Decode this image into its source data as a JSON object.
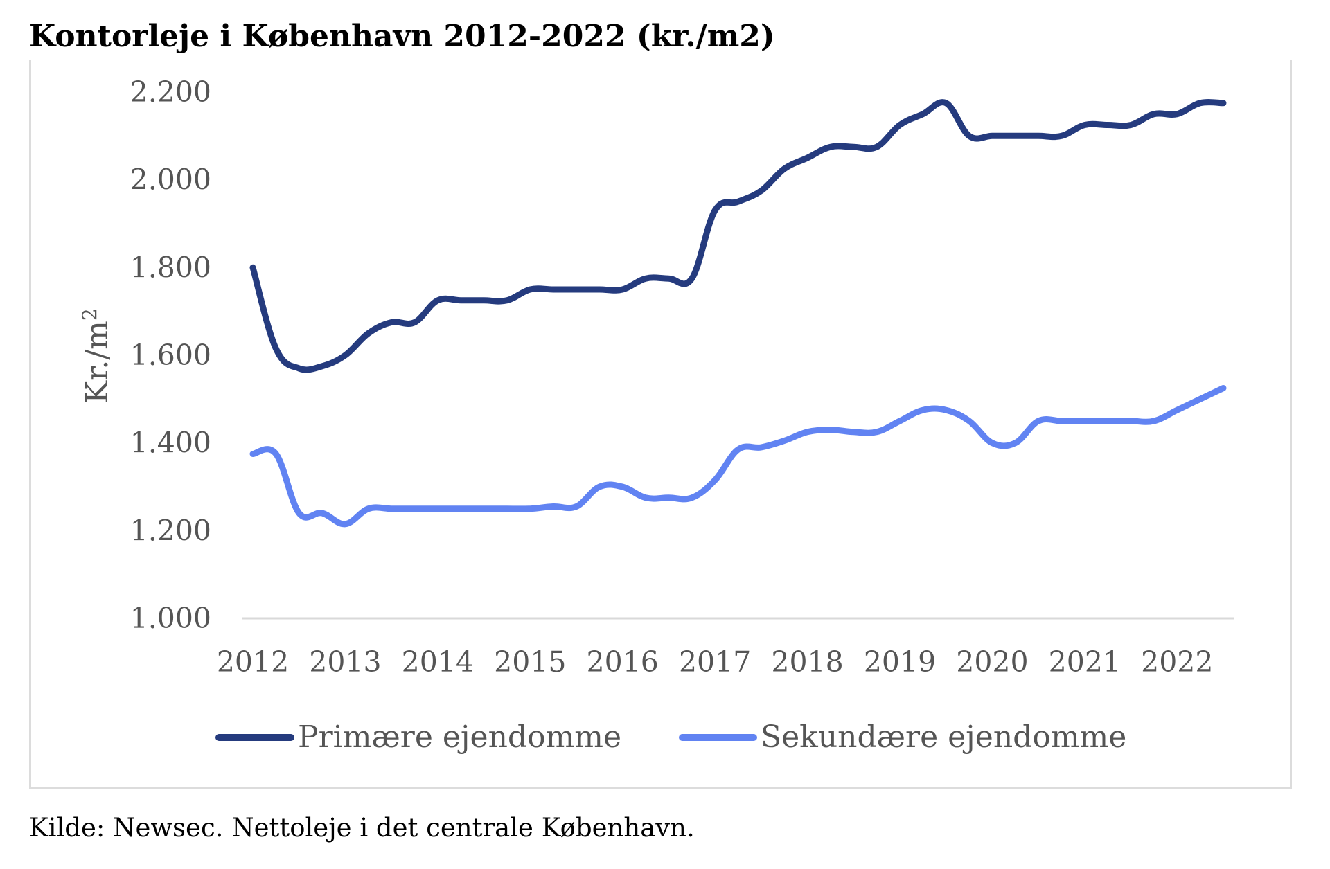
{
  "title": "Kontorleje i København 2012-2022 (kr./m2)",
  "source": "Kilde: Newsec. Nettoleje i det centrale København.",
  "colors": {
    "primary_series": "#253b7e",
    "secondary_series": "#6183f2",
    "gridline": "#d9d9d9",
    "axis_text": "#555555",
    "frame": "#dcdcdc"
  },
  "chart_data": {
    "type": "line",
    "title": "Kontorleje i København 2012-2022 (kr./m2)",
    "xlabel": "",
    "ylabel": "Kr./m",
    "ylabel_superscript": "2",
    "xlim": [
      2012,
      2022.5
    ],
    "ylim": [
      1000,
      2200
    ],
    "yticks": [
      1000,
      1200,
      1400,
      1600,
      1800,
      2000,
      2200
    ],
    "ytick_labels": [
      "1.000",
      "1.200",
      "1.400",
      "1.600",
      "1.800",
      "2.000",
      "2.200"
    ],
    "xticks": [
      2012,
      2013,
      2014,
      2015,
      2016,
      2017,
      2018,
      2019,
      2020,
      2021,
      2022
    ],
    "xtick_labels": [
      "2012",
      "2013",
      "2014",
      "2015",
      "2016",
      "2017",
      "2018",
      "2019",
      "2020",
      "2021",
      "2022"
    ],
    "grid": false,
    "legend_position": "bottom",
    "series": [
      {
        "name": "Primære ejendomme",
        "x": [
          2012.0,
          2012.25,
          2012.5,
          2012.75,
          2013.0,
          2013.25,
          2013.5,
          2013.75,
          2014.0,
          2014.25,
          2014.5,
          2014.75,
          2015.0,
          2015.25,
          2015.5,
          2015.75,
          2016.0,
          2016.25,
          2016.5,
          2016.75,
          2017.0,
          2017.25,
          2017.5,
          2017.75,
          2018.0,
          2018.25,
          2018.5,
          2018.75,
          2019.0,
          2019.25,
          2019.5,
          2019.75,
          2020.0,
          2020.25,
          2020.5,
          2020.75,
          2021.0,
          2021.25,
          2021.5,
          2021.75,
          2022.0,
          2022.25,
          2022.5
        ],
        "values": [
          1800,
          1615,
          1570,
          1575,
          1600,
          1650,
          1675,
          1675,
          1725,
          1725,
          1725,
          1725,
          1750,
          1750,
          1750,
          1750,
          1750,
          1775,
          1775,
          1775,
          1930,
          1950,
          1975,
          2025,
          2050,
          2075,
          2075,
          2075,
          2125,
          2150,
          2175,
          2100,
          2100,
          2100,
          2100,
          2100,
          2125,
          2125,
          2125,
          2150,
          2150,
          2175,
          2175
        ]
      },
      {
        "name": "Sekundære ejendomme",
        "x": [
          2012.0,
          2012.25,
          2012.5,
          2012.75,
          2013.0,
          2013.25,
          2013.5,
          2013.75,
          2014.0,
          2014.25,
          2014.5,
          2014.75,
          2015.0,
          2015.25,
          2015.5,
          2015.75,
          2016.0,
          2016.25,
          2016.5,
          2016.75,
          2017.0,
          2017.25,
          2017.5,
          2017.75,
          2018.0,
          2018.25,
          2018.5,
          2018.75,
          2019.0,
          2019.25,
          2019.5,
          2019.75,
          2020.0,
          2020.25,
          2020.5,
          2020.75,
          2021.0,
          2021.25,
          2021.5,
          2021.75,
          2022.0,
          2022.25,
          2022.5
        ],
        "values": [
          1375,
          1375,
          1240,
          1240,
          1215,
          1250,
          1250,
          1250,
          1250,
          1250,
          1250,
          1250,
          1250,
          1255,
          1255,
          1300,
          1300,
          1275,
          1275,
          1275,
          1315,
          1385,
          1390,
          1405,
          1425,
          1430,
          1425,
          1425,
          1450,
          1475,
          1475,
          1450,
          1400,
          1400,
          1450,
          1450,
          1450,
          1450,
          1450,
          1450,
          1475,
          1500,
          1525
        ]
      }
    ]
  }
}
